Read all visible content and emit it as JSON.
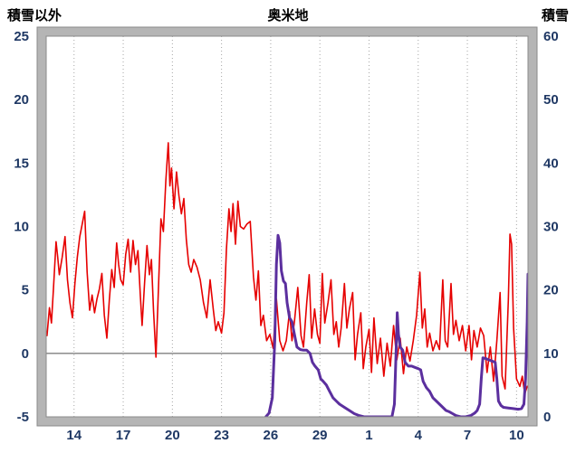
{
  "chart_data": {
    "type": "line",
    "title": "奥米地",
    "left_axis": {
      "label": "積雪以外",
      "min": -5,
      "max": 25,
      "ticks": [
        25,
        20,
        15,
        10,
        5,
        0,
        -5
      ]
    },
    "right_axis": {
      "label": "積雪",
      "min": 0,
      "max": 60,
      "ticks": [
        60,
        50,
        40,
        30,
        20,
        10,
        0
      ]
    },
    "x_axis": {
      "min": 12.3,
      "max": 41.7,
      "tick_values": [
        14,
        17,
        20,
        23,
        26,
        29,
        32,
        35,
        38,
        41
      ],
      "tick_labels": [
        "14",
        "17",
        "20",
        "23",
        "26",
        "29",
        "1",
        "4",
        "7",
        "10"
      ]
    },
    "grid": {
      "vertical": "dotted at each x tick",
      "zero_line_left_axis": 0
    },
    "frame_color": "#b5b5b5",
    "tick_label_color": "#1f3864",
    "series": [
      {
        "name": "積雪以外",
        "axis": "left",
        "color": "#e60000",
        "line_width": 1.6,
        "points": [
          [
            12.35,
            1.4
          ],
          [
            12.5,
            3.6
          ],
          [
            12.62,
            2.4
          ],
          [
            12.75,
            5.2
          ],
          [
            12.9,
            8.8
          ],
          [
            13.0,
            7.6
          ],
          [
            13.1,
            6.2
          ],
          [
            13.28,
            7.6
          ],
          [
            13.45,
            9.2
          ],
          [
            13.6,
            5.8
          ],
          [
            13.75,
            4.0
          ],
          [
            13.9,
            2.8
          ],
          [
            14.05,
            5.5
          ],
          [
            14.2,
            7.6
          ],
          [
            14.35,
            9.2
          ],
          [
            14.5,
            10.2
          ],
          [
            14.65,
            11.2
          ],
          [
            14.8,
            6.4
          ],
          [
            14.95,
            3.4
          ],
          [
            15.1,
            4.6
          ],
          [
            15.25,
            3.2
          ],
          [
            15.4,
            4.3
          ],
          [
            15.55,
            5.1
          ],
          [
            15.7,
            6.3
          ],
          [
            15.85,
            3.0
          ],
          [
            16.0,
            1.2
          ],
          [
            16.15,
            4.2
          ],
          [
            16.3,
            6.6
          ],
          [
            16.45,
            5.2
          ],
          [
            16.6,
            8.7
          ],
          [
            16.72,
            7.0
          ],
          [
            16.85,
            5.8
          ],
          [
            17.0,
            5.4
          ],
          [
            17.15,
            7.8
          ],
          [
            17.3,
            9.0
          ],
          [
            17.45,
            6.4
          ],
          [
            17.6,
            8.9
          ],
          [
            17.75,
            7.0
          ],
          [
            17.9,
            8.1
          ],
          [
            18.05,
            4.5
          ],
          [
            18.15,
            2.2
          ],
          [
            18.3,
            5.5
          ],
          [
            18.45,
            8.5
          ],
          [
            18.6,
            6.2
          ],
          [
            18.72,
            7.4
          ],
          [
            18.85,
            3.4
          ],
          [
            19.0,
            -0.3
          ],
          [
            19.15,
            5.2
          ],
          [
            19.3,
            10.6
          ],
          [
            19.45,
            9.6
          ],
          [
            19.6,
            13.6
          ],
          [
            19.75,
            16.6
          ],
          [
            19.85,
            13.2
          ],
          [
            19.95,
            14.6
          ],
          [
            20.1,
            11.4
          ],
          [
            20.25,
            14.3
          ],
          [
            20.4,
            12.4
          ],
          [
            20.55,
            11.0
          ],
          [
            20.7,
            12.2
          ],
          [
            20.85,
            9.0
          ],
          [
            21.0,
            7.0
          ],
          [
            21.15,
            6.4
          ],
          [
            21.3,
            7.4
          ],
          [
            21.5,
            6.8
          ],
          [
            21.7,
            5.8
          ],
          [
            21.9,
            4.0
          ],
          [
            22.1,
            2.8
          ],
          [
            22.3,
            5.8
          ],
          [
            22.5,
            3.4
          ],
          [
            22.65,
            1.8
          ],
          [
            22.8,
            2.5
          ],
          [
            23.0,
            1.6
          ],
          [
            23.15,
            3.2
          ],
          [
            23.3,
            8.2
          ],
          [
            23.45,
            11.4
          ],
          [
            23.58,
            9.6
          ],
          [
            23.7,
            11.8
          ],
          [
            23.85,
            8.6
          ],
          [
            24.0,
            12.0
          ],
          [
            24.15,
            10.0
          ],
          [
            24.35,
            9.8
          ],
          [
            24.55,
            10.2
          ],
          [
            24.75,
            10.4
          ],
          [
            24.95,
            6.0
          ],
          [
            25.1,
            4.2
          ],
          [
            25.25,
            6.5
          ],
          [
            25.4,
            2.2
          ],
          [
            25.55,
            3.0
          ],
          [
            25.75,
            1.0
          ],
          [
            25.95,
            1.5
          ],
          [
            26.15,
            0.4
          ],
          [
            26.35,
            4.3
          ],
          [
            26.55,
            1.0
          ],
          [
            26.75,
            0.2
          ],
          [
            26.95,
            1.0
          ],
          [
            27.15,
            3.3
          ],
          [
            27.3,
            1.0
          ],
          [
            27.45,
            2.5
          ],
          [
            27.65,
            5.2
          ],
          [
            27.85,
            1.4
          ],
          [
            28.0,
            0.5
          ],
          [
            28.2,
            4.0
          ],
          [
            28.35,
            6.2
          ],
          [
            28.5,
            1.2
          ],
          [
            28.68,
            3.5
          ],
          [
            28.85,
            1.5
          ],
          [
            29.0,
            0.8
          ],
          [
            29.15,
            6.3
          ],
          [
            29.3,
            2.4
          ],
          [
            29.5,
            4.0
          ],
          [
            29.68,
            5.8
          ],
          [
            29.85,
            1.5
          ],
          [
            30.0,
            2.5
          ],
          [
            30.15,
            0.5
          ],
          [
            30.3,
            2.0
          ],
          [
            30.5,
            5.5
          ],
          [
            30.65,
            2.0
          ],
          [
            30.8,
            3.5
          ],
          [
            31.0,
            4.8
          ],
          [
            31.15,
            -0.5
          ],
          [
            31.3,
            1.5
          ],
          [
            31.5,
            3.2
          ],
          [
            31.65,
            -1.2
          ],
          [
            31.8,
            0.5
          ],
          [
            32.0,
            1.9
          ],
          [
            32.15,
            -1.5
          ],
          [
            32.3,
            2.8
          ],
          [
            32.5,
            -0.8
          ],
          [
            32.7,
            1.2
          ],
          [
            32.9,
            -1.8
          ],
          [
            33.1,
            0.8
          ],
          [
            33.3,
            -1.0
          ],
          [
            33.5,
            2.2
          ],
          [
            33.7,
            -0.5
          ],
          [
            33.9,
            1.2
          ],
          [
            34.1,
            -1.6
          ],
          [
            34.3,
            0.5
          ],
          [
            34.5,
            -0.6
          ],
          [
            34.7,
            1.0
          ],
          [
            34.9,
            3.0
          ],
          [
            35.1,
            6.4
          ],
          [
            35.25,
            2.0
          ],
          [
            35.4,
            3.5
          ],
          [
            35.55,
            0.5
          ],
          [
            35.7,
            1.6
          ],
          [
            35.9,
            0.2
          ],
          [
            36.1,
            1.0
          ],
          [
            36.3,
            0.3
          ],
          [
            36.5,
            5.8
          ],
          [
            36.65,
            1.0
          ],
          [
            36.8,
            0.5
          ],
          [
            37.0,
            5.5
          ],
          [
            37.15,
            1.5
          ],
          [
            37.3,
            2.6
          ],
          [
            37.5,
            1.0
          ],
          [
            37.7,
            2.2
          ],
          [
            37.9,
            0.2
          ],
          [
            38.1,
            2.2
          ],
          [
            38.25,
            -0.5
          ],
          [
            38.4,
            1.8
          ],
          [
            38.6,
            0.5
          ],
          [
            38.8,
            2.0
          ],
          [
            39.0,
            1.4
          ],
          [
            39.2,
            -1.5
          ],
          [
            39.4,
            0.5
          ],
          [
            39.6,
            -2.2
          ],
          [
            39.8,
            1.0
          ],
          [
            40.0,
            4.8
          ],
          [
            40.12,
            -1.8
          ],
          [
            40.3,
            -2.8
          ],
          [
            40.5,
            4.2
          ],
          [
            40.6,
            9.4
          ],
          [
            40.7,
            8.6
          ],
          [
            40.82,
            2.0
          ],
          [
            41.0,
            -2.0
          ],
          [
            41.2,
            -2.6
          ],
          [
            41.35,
            -1.8
          ],
          [
            41.5,
            -3.2
          ],
          [
            41.65,
            -2.6
          ]
        ]
      },
      {
        "name": "積雪",
        "axis": "right",
        "color": "#5b2f9e",
        "line_width": 3,
        "points": [
          [
            25.7,
            0
          ],
          [
            25.9,
            0.6
          ],
          [
            26.1,
            3.0
          ],
          [
            26.25,
            12.0
          ],
          [
            26.35,
            24.0
          ],
          [
            26.45,
            28.6
          ],
          [
            26.55,
            27.4
          ],
          [
            26.65,
            23.0
          ],
          [
            26.78,
            21.4
          ],
          [
            26.9,
            21.0
          ],
          [
            27.0,
            18.0
          ],
          [
            27.15,
            15.6
          ],
          [
            27.3,
            15.0
          ],
          [
            27.45,
            13.0
          ],
          [
            27.6,
            11.0
          ],
          [
            27.8,
            10.6
          ],
          [
            28.0,
            10.5
          ],
          [
            28.2,
            10.5
          ],
          [
            28.4,
            10.0
          ],
          [
            28.55,
            8.6
          ],
          [
            28.7,
            8.0
          ],
          [
            28.9,
            7.4
          ],
          [
            29.05,
            6.0
          ],
          [
            29.2,
            5.6
          ],
          [
            29.4,
            5.0
          ],
          [
            29.6,
            4.0
          ],
          [
            29.8,
            3.0
          ],
          [
            30.0,
            2.5
          ],
          [
            30.2,
            2.0
          ],
          [
            30.5,
            1.5
          ],
          [
            30.8,
            1.0
          ],
          [
            31.1,
            0.5
          ],
          [
            31.4,
            0.2
          ],
          [
            31.7,
            0
          ],
          [
            32.2,
            0
          ],
          [
            32.8,
            0
          ],
          [
            33.4,
            0
          ],
          [
            33.55,
            2.0
          ],
          [
            33.65,
            10.0
          ],
          [
            33.72,
            16.4
          ],
          [
            33.8,
            13.0
          ],
          [
            33.9,
            11.0
          ],
          [
            34.05,
            10.5
          ],
          [
            34.2,
            8.6
          ],
          [
            34.4,
            8.0
          ],
          [
            34.6,
            8.0
          ],
          [
            34.8,
            7.8
          ],
          [
            35.0,
            7.6
          ],
          [
            35.15,
            7.4
          ],
          [
            35.3,
            5.6
          ],
          [
            35.5,
            4.6
          ],
          [
            35.7,
            4.0
          ],
          [
            35.9,
            3.0
          ],
          [
            36.1,
            2.5
          ],
          [
            36.3,
            2.0
          ],
          [
            36.5,
            1.5
          ],
          [
            36.7,
            1.0
          ],
          [
            36.9,
            0.8
          ],
          [
            37.1,
            0.5
          ],
          [
            37.3,
            0.2
          ],
          [
            37.6,
            0
          ],
          [
            37.9,
            0
          ],
          [
            38.2,
            0.2
          ],
          [
            38.45,
            0.6
          ],
          [
            38.6,
            1.0
          ],
          [
            38.75,
            2.0
          ],
          [
            38.85,
            6.0
          ],
          [
            38.95,
            9.3
          ],
          [
            39.1,
            9.2
          ],
          [
            39.3,
            9.0
          ],
          [
            39.5,
            8.8
          ],
          [
            39.7,
            8.6
          ],
          [
            39.8,
            6.0
          ],
          [
            39.9,
            2.5
          ],
          [
            40.05,
            1.8
          ],
          [
            40.2,
            1.5
          ],
          [
            40.5,
            1.4
          ],
          [
            40.8,
            1.3
          ],
          [
            41.1,
            1.2
          ],
          [
            41.3,
            1.3
          ],
          [
            41.45,
            2.0
          ],
          [
            41.55,
            6.0
          ],
          [
            41.65,
            15.0
          ],
          [
            41.7,
            22.5
          ]
        ]
      }
    ]
  }
}
